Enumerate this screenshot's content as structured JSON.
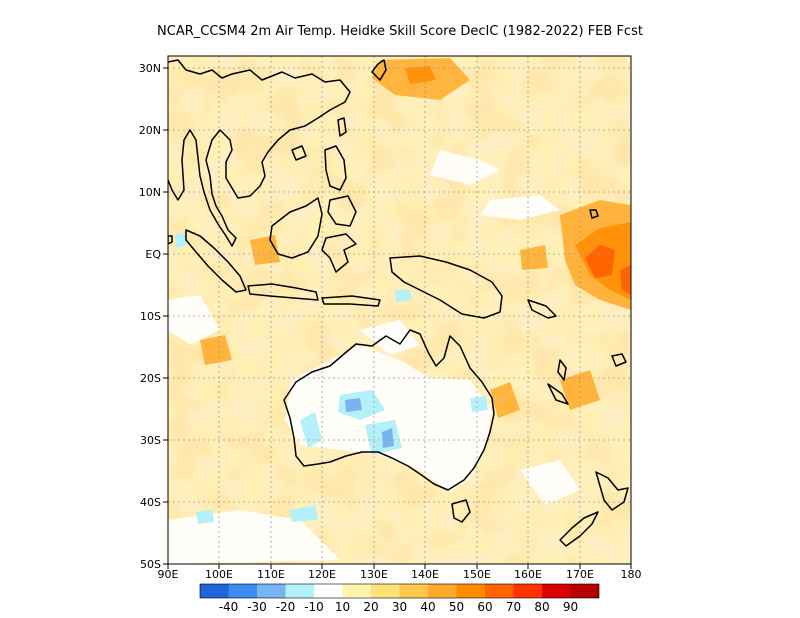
{
  "title": "NCAR_CCSM4  2m Air Temp. Heidke Skill Score DecIC (1982-2022) FEB Fcst",
  "map": {
    "lon_range": [
      90,
      180
    ],
    "lat_range": [
      -50,
      32
    ],
    "lon_ticks": [
      {
        "value": 90,
        "label": "90E"
      },
      {
        "value": 100,
        "label": "100E"
      },
      {
        "value": 110,
        "label": "110E"
      },
      {
        "value": 120,
        "label": "120E"
      },
      {
        "value": 130,
        "label": "130E"
      },
      {
        "value": 140,
        "label": "140E"
      },
      {
        "value": 150,
        "label": "150E"
      },
      {
        "value": 160,
        "label": "160E"
      },
      {
        "value": 170,
        "label": "170E"
      },
      {
        "value": 180,
        "label": "180"
      }
    ],
    "lat_ticks": [
      {
        "value": 30,
        "label": "30N"
      },
      {
        "value": 20,
        "label": "20N"
      },
      {
        "value": 10,
        "label": "10N"
      },
      {
        "value": 0,
        "label": "EQ"
      },
      {
        "value": -10,
        "label": "10S"
      },
      {
        "value": -20,
        "label": "20S"
      },
      {
        "value": -30,
        "label": "30S"
      },
      {
        "value": -40,
        "label": "40S"
      },
      {
        "value": -50,
        "label": "50S"
      }
    ],
    "gridlines": "dotted"
  },
  "colorbar": {
    "colors": [
      "#1e64dc",
      "#3c8cf0",
      "#78b4f0",
      "#b4f0fa",
      "#ffffff",
      "#fff5aa",
      "#ffe178",
      "#ffc84b",
      "#ffaa28",
      "#ff8c00",
      "#ff6400",
      "#ff3200",
      "#dc0000",
      "#b40000"
    ],
    "labels": [
      "-40",
      "-30",
      "-20",
      "-10",
      "10",
      "20",
      "30",
      "40",
      "50",
      "60",
      "70",
      "80",
      "90"
    ]
  }
}
